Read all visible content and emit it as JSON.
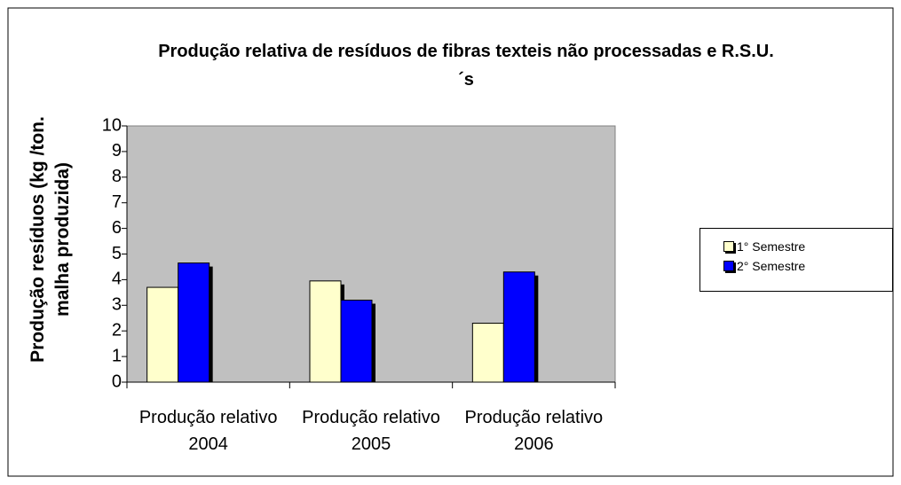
{
  "chart_data": {
    "type": "bar",
    "title": "Produção relativa de resíduos de fibras texteis não processadas e R.S.U.´s",
    "y_label": "Produção resíduos (kg /ton. malha produzida)",
    "categories": [
      "Produção relativo 2004",
      "Produção relativo 2005",
      "Produção relativo 2006"
    ],
    "series": [
      {
        "name": "1° Semestre",
        "color": "#ffffcc",
        "values": [
          3.7,
          3.95,
          2.3
        ]
      },
      {
        "name": "2° Semestre",
        "color": "#0000ff",
        "values": [
          4.65,
          3.2,
          4.3
        ]
      }
    ],
    "ylim": [
      0,
      10
    ],
    "yticks": [
      0,
      1,
      2,
      3,
      4,
      5,
      6,
      7,
      8,
      9,
      10
    ],
    "plot_background": "#c0c0c0",
    "legend": "right"
  }
}
